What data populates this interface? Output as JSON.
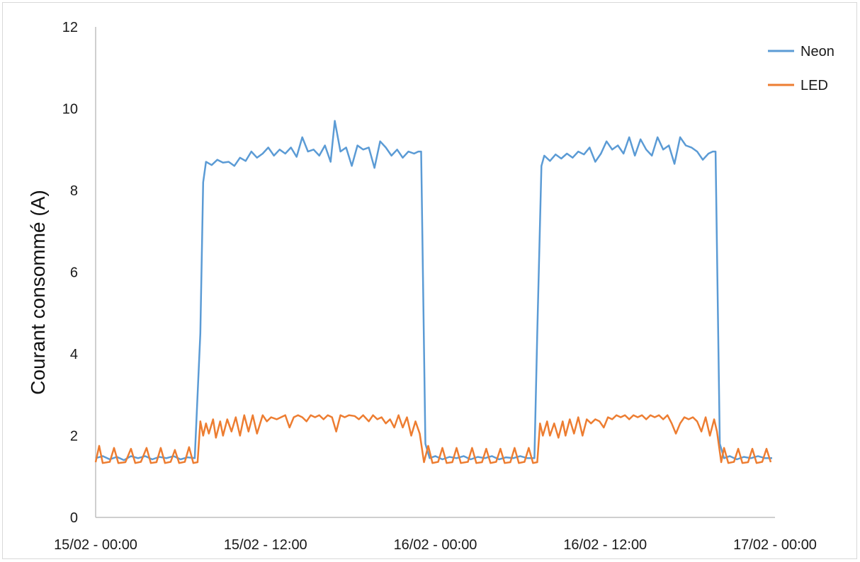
{
  "chart_data": {
    "type": "line",
    "title": "",
    "ylabel": "Courant consommé (A)",
    "xlabel": "",
    "ylim": [
      0,
      12
    ],
    "yticks": [
      "0",
      "2",
      "4",
      "6",
      "8",
      "10",
      "12"
    ],
    "xlim_hours": [
      0,
      48
    ],
    "xticks": [
      "15/02 - 00:00",
      "15/02 - 12:00",
      "16/02 - 00:00",
      "16/02 - 12:00",
      "17/02 - 00:00"
    ],
    "grid": false,
    "legend_position": "top-right",
    "series": [
      {
        "name": "Neon",
        "color": "#5B9BD5",
        "points": [
          [
            0,
            1.45
          ],
          [
            0.5,
            1.5
          ],
          [
            1,
            1.42
          ],
          [
            1.5,
            1.48
          ],
          [
            2,
            1.4
          ],
          [
            2.5,
            1.5
          ],
          [
            3,
            1.45
          ],
          [
            3.5,
            1.5
          ],
          [
            4,
            1.42
          ],
          [
            4.5,
            1.48
          ],
          [
            5,
            1.45
          ],
          [
            5.5,
            1.5
          ],
          [
            6,
            1.42
          ],
          [
            6.5,
            1.47
          ],
          [
            7,
            1.45
          ],
          [
            7.4,
            4.5
          ],
          [
            7.6,
            8.2
          ],
          [
            7.8,
            8.7
          ],
          [
            8.2,
            8.62
          ],
          [
            8.6,
            8.75
          ],
          [
            9,
            8.68
          ],
          [
            9.4,
            8.7
          ],
          [
            9.8,
            8.6
          ],
          [
            10.2,
            8.8
          ],
          [
            10.6,
            8.72
          ],
          [
            11,
            8.95
          ],
          [
            11.4,
            8.8
          ],
          [
            11.8,
            8.9
          ],
          [
            12.2,
            9.05
          ],
          [
            12.6,
            8.85
          ],
          [
            13,
            9.0
          ],
          [
            13.4,
            8.9
          ],
          [
            13.8,
            9.05
          ],
          [
            14.2,
            8.82
          ],
          [
            14.6,
            9.3
          ],
          [
            15,
            8.95
          ],
          [
            15.4,
            9.0
          ],
          [
            15.8,
            8.85
          ],
          [
            16.2,
            9.1
          ],
          [
            16.6,
            8.7
          ],
          [
            16.9,
            9.7
          ],
          [
            17.3,
            8.95
          ],
          [
            17.7,
            9.05
          ],
          [
            18.1,
            8.6
          ],
          [
            18.5,
            9.1
          ],
          [
            18.9,
            9.0
          ],
          [
            19.3,
            9.05
          ],
          [
            19.7,
            8.55
          ],
          [
            20.1,
            9.2
          ],
          [
            20.5,
            9.05
          ],
          [
            20.9,
            8.85
          ],
          [
            21.3,
            9.0
          ],
          [
            21.7,
            8.8
          ],
          [
            22.1,
            8.95
          ],
          [
            22.5,
            8.9
          ],
          [
            22.8,
            8.95
          ],
          [
            23.0,
            8.95
          ],
          [
            23.3,
            1.8
          ],
          [
            23.6,
            1.45
          ],
          [
            24,
            1.5
          ],
          [
            24.5,
            1.42
          ],
          [
            25,
            1.48
          ],
          [
            25.5,
            1.45
          ],
          [
            26,
            1.5
          ],
          [
            26.5,
            1.42
          ],
          [
            27,
            1.48
          ],
          [
            27.5,
            1.45
          ],
          [
            28,
            1.5
          ],
          [
            28.5,
            1.42
          ],
          [
            29,
            1.47
          ],
          [
            29.5,
            1.45
          ],
          [
            30,
            1.5
          ],
          [
            30.5,
            1.45
          ],
          [
            31.0,
            1.45
          ],
          [
            31.2,
            4.5
          ],
          [
            31.5,
            8.6
          ],
          [
            31.7,
            8.85
          ],
          [
            32.1,
            8.72
          ],
          [
            32.5,
            8.88
          ],
          [
            32.9,
            8.78
          ],
          [
            33.3,
            8.9
          ],
          [
            33.7,
            8.8
          ],
          [
            34.1,
            8.95
          ],
          [
            34.5,
            8.88
          ],
          [
            34.9,
            9.05
          ],
          [
            35.3,
            8.7
          ],
          [
            35.7,
            8.9
          ],
          [
            36.1,
            9.2
          ],
          [
            36.5,
            9.0
          ],
          [
            36.9,
            9.1
          ],
          [
            37.3,
            8.9
          ],
          [
            37.7,
            9.3
          ],
          [
            38.1,
            8.85
          ],
          [
            38.5,
            9.25
          ],
          [
            38.9,
            9.0
          ],
          [
            39.3,
            8.85
          ],
          [
            39.7,
            9.3
          ],
          [
            40.1,
            9.0
          ],
          [
            40.5,
            9.1
          ],
          [
            40.9,
            8.65
          ],
          [
            41.3,
            9.3
          ],
          [
            41.7,
            9.1
          ],
          [
            42.1,
            9.05
          ],
          [
            42.5,
            8.95
          ],
          [
            42.9,
            8.75
          ],
          [
            43.3,
            8.9
          ],
          [
            43.6,
            8.95
          ],
          [
            43.8,
            8.95
          ],
          [
            44.1,
            1.8
          ],
          [
            44.4,
            1.45
          ],
          [
            44.8,
            1.5
          ],
          [
            45.3,
            1.42
          ],
          [
            45.8,
            1.48
          ],
          [
            46.3,
            1.45
          ],
          [
            46.8,
            1.5
          ],
          [
            47.3,
            1.45
          ],
          [
            47.8,
            1.45
          ]
        ]
      },
      {
        "name": "LED",
        "color": "#ED7D31",
        "points": [
          [
            0,
            1.35
          ],
          [
            0.25,
            1.75
          ],
          [
            0.5,
            1.33
          ],
          [
            1.0,
            1.36
          ],
          [
            1.3,
            1.7
          ],
          [
            1.6,
            1.33
          ],
          [
            2.1,
            1.35
          ],
          [
            2.5,
            1.68
          ],
          [
            2.8,
            1.33
          ],
          [
            3.2,
            1.36
          ],
          [
            3.6,
            1.7
          ],
          [
            3.9,
            1.33
          ],
          [
            4.3,
            1.35
          ],
          [
            4.6,
            1.7
          ],
          [
            4.9,
            1.33
          ],
          [
            5.3,
            1.36
          ],
          [
            5.6,
            1.65
          ],
          [
            5.9,
            1.33
          ],
          [
            6.3,
            1.36
          ],
          [
            6.6,
            1.72
          ],
          [
            6.9,
            1.33
          ],
          [
            7.2,
            1.35
          ],
          [
            7.4,
            2.35
          ],
          [
            7.6,
            2.0
          ],
          [
            7.8,
            2.3
          ],
          [
            8.0,
            2.05
          ],
          [
            8.3,
            2.4
          ],
          [
            8.5,
            1.95
          ],
          [
            8.8,
            2.35
          ],
          [
            9.0,
            2.0
          ],
          [
            9.3,
            2.4
          ],
          [
            9.6,
            2.1
          ],
          [
            9.9,
            2.45
          ],
          [
            10.2,
            2.0
          ],
          [
            10.5,
            2.5
          ],
          [
            10.8,
            2.1
          ],
          [
            11.1,
            2.5
          ],
          [
            11.4,
            2.05
          ],
          [
            11.8,
            2.5
          ],
          [
            12.1,
            2.35
          ],
          [
            12.4,
            2.45
          ],
          [
            12.8,
            2.4
          ],
          [
            13.1,
            2.45
          ],
          [
            13.4,
            2.5
          ],
          [
            13.7,
            2.2
          ],
          [
            14.0,
            2.45
          ],
          [
            14.3,
            2.5
          ],
          [
            14.6,
            2.45
          ],
          [
            14.9,
            2.35
          ],
          [
            15.2,
            2.5
          ],
          [
            15.5,
            2.45
          ],
          [
            15.8,
            2.5
          ],
          [
            16.1,
            2.4
          ],
          [
            16.4,
            2.5
          ],
          [
            16.7,
            2.45
          ],
          [
            17.0,
            2.1
          ],
          [
            17.3,
            2.5
          ],
          [
            17.6,
            2.45
          ],
          [
            17.9,
            2.5
          ],
          [
            18.3,
            2.48
          ],
          [
            18.6,
            2.4
          ],
          [
            18.9,
            2.5
          ],
          [
            19.3,
            2.35
          ],
          [
            19.6,
            2.5
          ],
          [
            19.9,
            2.4
          ],
          [
            20.2,
            2.45
          ],
          [
            20.5,
            2.3
          ],
          [
            20.8,
            2.4
          ],
          [
            21.1,
            2.2
          ],
          [
            21.4,
            2.5
          ],
          [
            21.7,
            2.2
          ],
          [
            22.0,
            2.45
          ],
          [
            22.3,
            2.0
          ],
          [
            22.6,
            2.35
          ],
          [
            22.9,
            2.05
          ],
          [
            23.2,
            1.35
          ],
          [
            23.5,
            1.75
          ],
          [
            23.8,
            1.33
          ],
          [
            24.2,
            1.36
          ],
          [
            24.5,
            1.7
          ],
          [
            24.8,
            1.33
          ],
          [
            25.2,
            1.35
          ],
          [
            25.5,
            1.7
          ],
          [
            25.8,
            1.33
          ],
          [
            26.3,
            1.36
          ],
          [
            26.6,
            1.7
          ],
          [
            26.9,
            1.33
          ],
          [
            27.3,
            1.35
          ],
          [
            27.6,
            1.68
          ],
          [
            27.9,
            1.33
          ],
          [
            28.3,
            1.36
          ],
          [
            28.6,
            1.68
          ],
          [
            28.9,
            1.33
          ],
          [
            29.3,
            1.35
          ],
          [
            29.6,
            1.7
          ],
          [
            29.9,
            1.33
          ],
          [
            30.3,
            1.36
          ],
          [
            30.6,
            1.7
          ],
          [
            30.9,
            1.33
          ],
          [
            31.2,
            1.35
          ],
          [
            31.4,
            2.3
          ],
          [
            31.6,
            2.0
          ],
          [
            31.9,
            2.35
          ],
          [
            32.1,
            2.0
          ],
          [
            32.4,
            2.3
          ],
          [
            32.7,
            1.95
          ],
          [
            33.0,
            2.35
          ],
          [
            33.2,
            2.0
          ],
          [
            33.5,
            2.4
          ],
          [
            33.8,
            2.05
          ],
          [
            34.1,
            2.45
          ],
          [
            34.4,
            2.0
          ],
          [
            34.7,
            2.4
          ],
          [
            35.0,
            2.3
          ],
          [
            35.3,
            2.4
          ],
          [
            35.6,
            2.35
          ],
          [
            35.9,
            2.2
          ],
          [
            36.2,
            2.45
          ],
          [
            36.5,
            2.4
          ],
          [
            36.8,
            2.5
          ],
          [
            37.1,
            2.45
          ],
          [
            37.4,
            2.5
          ],
          [
            37.7,
            2.4
          ],
          [
            38.0,
            2.5
          ],
          [
            38.3,
            2.45
          ],
          [
            38.6,
            2.5
          ],
          [
            38.9,
            2.4
          ],
          [
            39.2,
            2.5
          ],
          [
            39.5,
            2.45
          ],
          [
            39.8,
            2.5
          ],
          [
            40.1,
            2.4
          ],
          [
            40.4,
            2.5
          ],
          [
            40.7,
            2.3
          ],
          [
            41.0,
            2.05
          ],
          [
            41.3,
            2.3
          ],
          [
            41.6,
            2.45
          ],
          [
            41.9,
            2.4
          ],
          [
            42.2,
            2.45
          ],
          [
            42.5,
            2.35
          ],
          [
            42.8,
            2.1
          ],
          [
            43.1,
            2.45
          ],
          [
            43.4,
            2.0
          ],
          [
            43.7,
            2.4
          ],
          [
            43.9,
            2.1
          ],
          [
            44.2,
            1.35
          ],
          [
            44.4,
            1.7
          ],
          [
            44.7,
            1.33
          ],
          [
            45.1,
            1.36
          ],
          [
            45.4,
            1.68
          ],
          [
            45.7,
            1.33
          ],
          [
            46.1,
            1.35
          ],
          [
            46.4,
            1.68
          ],
          [
            46.7,
            1.33
          ],
          [
            47.1,
            1.36
          ],
          [
            47.4,
            1.68
          ],
          [
            47.7,
            1.35
          ]
        ]
      }
    ]
  }
}
